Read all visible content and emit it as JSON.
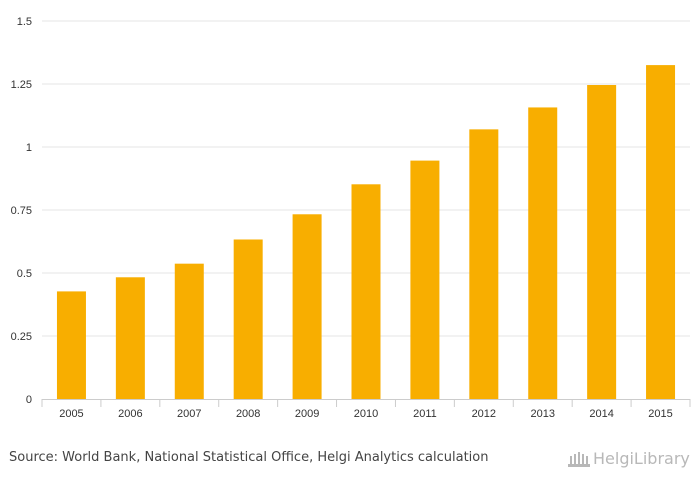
{
  "chart_data": {
    "type": "bar",
    "title": "",
    "xlabel": "",
    "ylabel": "",
    "categories": [
      "2005",
      "2006",
      "2007",
      "2008",
      "2009",
      "2010",
      "2011",
      "2012",
      "2013",
      "2014",
      "2015"
    ],
    "values": [
      0.427,
      0.483,
      0.537,
      0.633,
      0.733,
      0.852,
      0.946,
      1.07,
      1.157,
      1.246,
      1.325
    ],
    "yticks": [
      {
        "value": 0,
        "label": "0"
      },
      {
        "value": 0.25,
        "label": "0.25"
      },
      {
        "value": 0.5,
        "label": "0.5"
      },
      {
        "value": 0.75,
        "label": "0.75"
      },
      {
        "value": 1,
        "label": "1"
      },
      {
        "value": 1.25,
        "label": "1.25"
      },
      {
        "value": 1.5,
        "label": "1.5"
      }
    ],
    "ylim": [
      0,
      1.5
    ],
    "grid": true,
    "bar_color": "#f8ae00"
  },
  "footer": {
    "source": "Source: World Bank, National Statistical Office, Helgi Analytics calculation",
    "logo_text": "HelgiLibrary"
  },
  "colors": {
    "grid": "#e6e6e6",
    "axis_text": "#333333",
    "axis_line": "#cccccc"
  }
}
